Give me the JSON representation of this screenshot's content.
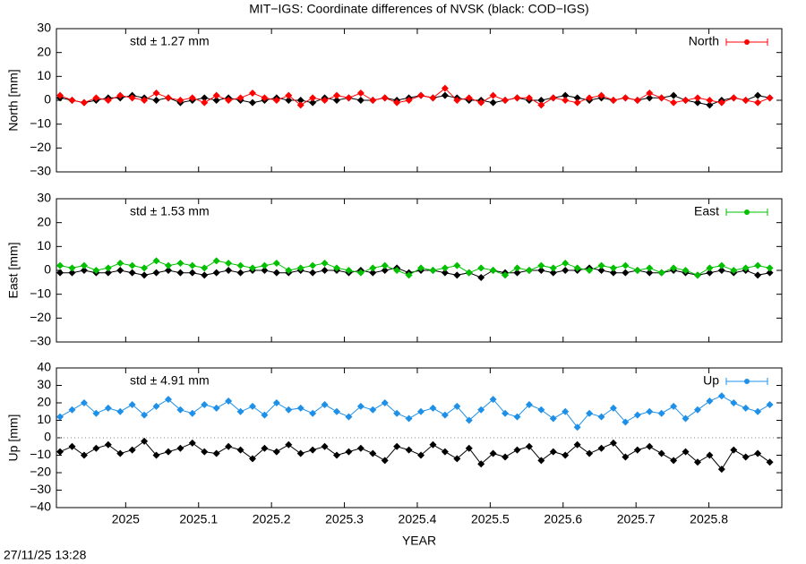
{
  "footer": "27/11/25 13:28",
  "chart_data": [
    {
      "type": "line",
      "title": "MIT−IGS: Coordinate differences of NVSK (black: COD−IGS)",
      "ylabel": "North [mm]",
      "annotation": "std ± 1.27 mm",
      "legend": "top-right",
      "x": [
        2024.91,
        2024.9265,
        2024.943,
        2024.9595,
        2024.976,
        2024.9925,
        2025.009,
        2025.0255,
        2025.042,
        2025.0585,
        2025.075,
        2025.0915,
        2025.108,
        2025.1245,
        2025.141,
        2025.1575,
        2025.174,
        2025.1905,
        2025.207,
        2025.2235,
        2025.24,
        2025.2565,
        2025.273,
        2025.2895,
        2025.306,
        2025.3225,
        2025.339,
        2025.3555,
        2025.372,
        2025.3885,
        2025.405,
        2025.4215,
        2025.438,
        2025.4545,
        2025.471,
        2025.4875,
        2025.504,
        2025.5205,
        2025.537,
        2025.5535,
        2025.57,
        2025.5865,
        2025.603,
        2025.6195,
        2025.636,
        2025.6525,
        2025.669,
        2025.6855,
        2025.702,
        2025.7185,
        2025.735,
        2025.7515,
        2025.768,
        2025.7845,
        2025.801,
        2025.8175,
        2025.834,
        2025.8505,
        2025.867,
        2025.8835
      ],
      "xlim": [
        2024.905,
        2025.9
      ],
      "ylim": [
        -30,
        30
      ],
      "yticks": [
        30,
        20,
        10,
        0,
        {
          "value": -10,
          "label": "−10"
        },
        {
          "value": -20,
          "label": "−20"
        },
        {
          "value": -30,
          "label": "−30"
        }
      ],
      "series": [
        {
          "color": "#000000",
          "values": [
            1,
            0,
            -1,
            0,
            1,
            1,
            2,
            1,
            0,
            1,
            -1,
            0,
            1,
            0,
            1,
            0,
            -1,
            0,
            1,
            0,
            0,
            -1,
            1,
            0,
            1,
            0,
            0,
            1,
            0,
            1,
            2,
            1,
            2,
            1,
            0,
            0,
            -1,
            0,
            1,
            0,
            0,
            1,
            2,
            1,
            0,
            1,
            0,
            1,
            0,
            1,
            1,
            2,
            0,
            -1,
            -2,
            0,
            1,
            0,
            2,
            1
          ]
        },
        {
          "name": "North",
          "color": "#ff0000",
          "values": [
            2,
            0,
            -1,
            1,
            0,
            2,
            1,
            0,
            3,
            1,
            0,
            1,
            -1,
            2,
            0,
            1,
            3,
            1,
            0,
            2,
            -2,
            1,
            0,
            2,
            1,
            3,
            0,
            1,
            -1,
            0,
            2,
            1,
            5,
            0,
            1,
            -1,
            2,
            0,
            1,
            1,
            -2,
            1,
            0,
            -1,
            1,
            2,
            0,
            1,
            0,
            3,
            1,
            -1,
            0,
            1,
            0,
            -1,
            1,
            0,
            -1,
            1
          ]
        }
      ]
    },
    {
      "type": "line",
      "ylabel": "East [mm]",
      "annotation": "std ± 1.53 mm",
      "legend": "top-right",
      "x": [
        2024.91,
        2024.9265,
        2024.943,
        2024.9595,
        2024.976,
        2024.9925,
        2025.009,
        2025.0255,
        2025.042,
        2025.0585,
        2025.075,
        2025.0915,
        2025.108,
        2025.1245,
        2025.141,
        2025.1575,
        2025.174,
        2025.1905,
        2025.207,
        2025.2235,
        2025.24,
        2025.2565,
        2025.273,
        2025.2895,
        2025.306,
        2025.3225,
        2025.339,
        2025.3555,
        2025.372,
        2025.3885,
        2025.405,
        2025.4215,
        2025.438,
        2025.4545,
        2025.471,
        2025.4875,
        2025.504,
        2025.5205,
        2025.537,
        2025.5535,
        2025.57,
        2025.5865,
        2025.603,
        2025.6195,
        2025.636,
        2025.6525,
        2025.669,
        2025.6855,
        2025.702,
        2025.7185,
        2025.735,
        2025.7515,
        2025.768,
        2025.7845,
        2025.801,
        2025.8175,
        2025.834,
        2025.8505,
        2025.867,
        2025.8835
      ],
      "xlim": [
        2024.905,
        2025.9
      ],
      "ylim": [
        -30,
        30
      ],
      "yticks": [
        30,
        20,
        10,
        0,
        {
          "value": -10,
          "label": "−10"
        },
        {
          "value": -20,
          "label": "−20"
        },
        {
          "value": -30,
          "label": "−30"
        }
      ],
      "series": [
        {
          "color": "#000000",
          "values": [
            -1,
            -1,
            0,
            -1,
            -1,
            0,
            -1,
            -2,
            -1,
            0,
            -1,
            -1,
            -2,
            -1,
            0,
            -1,
            0,
            0,
            -1,
            -1,
            0,
            -1,
            0,
            0,
            -1,
            0,
            -1,
            0,
            1,
            -1,
            0,
            0,
            -1,
            -2,
            -1,
            -3,
            0,
            -1,
            -1,
            0,
            0,
            -1,
            0,
            0,
            1,
            0,
            -1,
            -1,
            0,
            -1,
            -1,
            0,
            -1,
            -2,
            -1,
            0,
            -1,
            0,
            -2,
            -1
          ]
        },
        {
          "name": "East",
          "color": "#00c000",
          "values": [
            2,
            1,
            2,
            0,
            1,
            3,
            2,
            1,
            4,
            2,
            3,
            2,
            1,
            4,
            3,
            2,
            1,
            2,
            3,
            0,
            1,
            2,
            3,
            1,
            0,
            -1,
            1,
            2,
            0,
            -2,
            1,
            0,
            1,
            2,
            -1,
            1,
            0,
            -2,
            1,
            0,
            2,
            1,
            3,
            1,
            0,
            2,
            1,
            2,
            0,
            1,
            -1,
            1,
            0,
            -2,
            1,
            2,
            0,
            1,
            2,
            1
          ]
        }
      ]
    },
    {
      "type": "line",
      "ylabel": "Up [mm]",
      "xlabel": "YEAR",
      "annotation": "std ± 4.91 mm",
      "legend": "top-right",
      "zero_line": true,
      "x": [
        2024.91,
        2024.9265,
        2024.943,
        2024.9595,
        2024.976,
        2024.9925,
        2025.009,
        2025.0255,
        2025.042,
        2025.0585,
        2025.075,
        2025.0915,
        2025.108,
        2025.1245,
        2025.141,
        2025.1575,
        2025.174,
        2025.1905,
        2025.207,
        2025.2235,
        2025.24,
        2025.2565,
        2025.273,
        2025.2895,
        2025.306,
        2025.3225,
        2025.339,
        2025.3555,
        2025.372,
        2025.3885,
        2025.405,
        2025.4215,
        2025.438,
        2025.4545,
        2025.471,
        2025.4875,
        2025.504,
        2025.5205,
        2025.537,
        2025.5535,
        2025.57,
        2025.5865,
        2025.603,
        2025.6195,
        2025.636,
        2025.6525,
        2025.669,
        2025.6855,
        2025.702,
        2025.7185,
        2025.735,
        2025.7515,
        2025.768,
        2025.7845,
        2025.801,
        2025.8175,
        2025.834,
        2025.8505,
        2025.867,
        2025.8835
      ],
      "xlim": [
        2024.905,
        2025.9
      ],
      "xticks": [
        2025,
        2025.1,
        2025.2,
        2025.3,
        2025.4,
        2025.5,
        2025.6,
        2025.7,
        2025.8
      ],
      "ylim": [
        -40,
        40
      ],
      "yticks": [
        40,
        30,
        20,
        10,
        0,
        {
          "value": -10,
          "label": "−10"
        },
        {
          "value": -20,
          "label": "−20"
        },
        {
          "value": -30,
          "label": "−30"
        },
        {
          "value": -40,
          "label": "−40"
        }
      ],
      "series": [
        {
          "color": "#000000",
          "values": [
            -8,
            -5,
            -10,
            -6,
            -4,
            -9,
            -7,
            -2,
            -10,
            -8,
            -6,
            -3,
            -8,
            -9,
            -5,
            -7,
            -12,
            -6,
            -8,
            -4,
            -9,
            -7,
            -5,
            -10,
            -8,
            -6,
            -9,
            -13,
            -5,
            -7,
            -10,
            -4,
            -8,
            -12,
            -6,
            -15,
            -9,
            -11,
            -7,
            -5,
            -13,
            -8,
            -10,
            -4,
            -9,
            -6,
            -3,
            -11,
            -7,
            -5,
            -9,
            -13,
            -8,
            -14,
            -10,
            -18,
            -7,
            -11,
            -9,
            -14
          ]
        },
        {
          "name": "Up",
          "color": "#1e90e8",
          "values": [
            12,
            16,
            20,
            14,
            17,
            15,
            19,
            13,
            18,
            22,
            16,
            14,
            19,
            17,
            21,
            15,
            18,
            13,
            20,
            16,
            17,
            14,
            19,
            15,
            12,
            18,
            16,
            20,
            14,
            11,
            15,
            17,
            13,
            18,
            10,
            16,
            22,
            14,
            12,
            19,
            16,
            11,
            15,
            6,
            14,
            12,
            17,
            9,
            13,
            15,
            14,
            18,
            11,
            16,
            21,
            24,
            20,
            17,
            15,
            19
          ]
        }
      ]
    }
  ]
}
